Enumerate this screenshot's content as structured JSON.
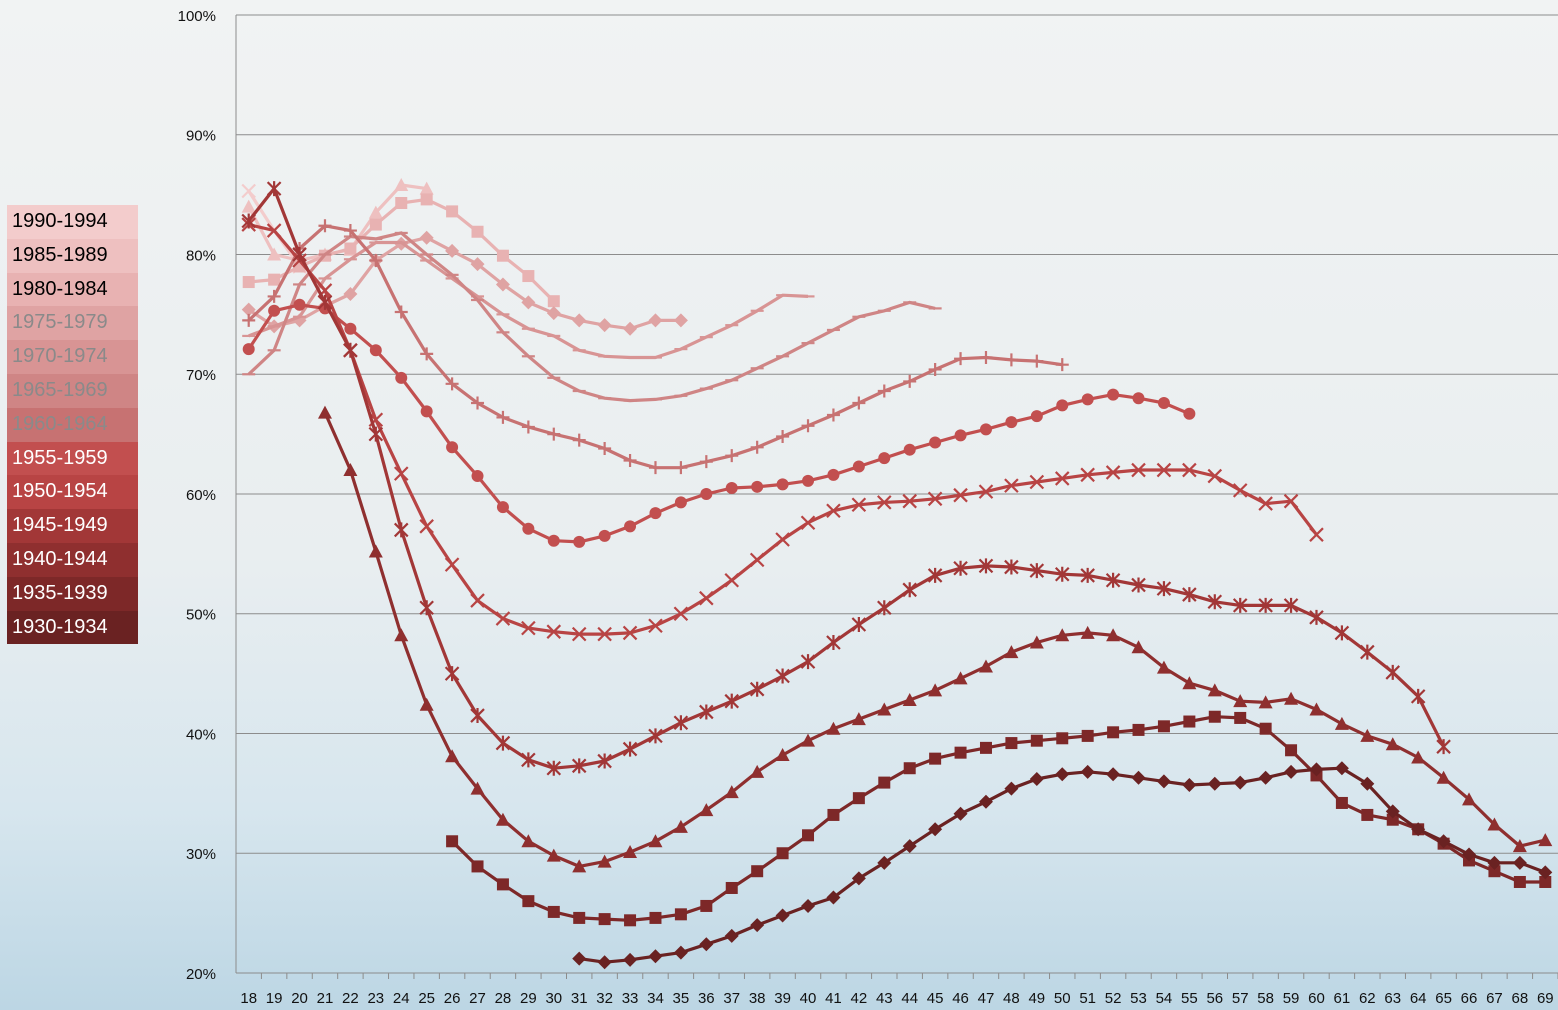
{
  "chart_data": {
    "type": "line",
    "x": [
      18,
      19,
      20,
      21,
      22,
      23,
      24,
      25,
      26,
      27,
      28,
      29,
      30,
      31,
      32,
      33,
      34,
      35,
      36,
      37,
      38,
      39,
      40,
      41,
      42,
      43,
      44,
      45,
      46,
      47,
      48,
      49,
      50,
      51,
      52,
      53,
      54,
      55,
      56,
      57,
      58,
      59,
      60,
      61,
      62,
      63,
      64,
      65,
      66,
      67,
      68,
      69
    ],
    "ylim": [
      20,
      100
    ],
    "yticks": [
      {
        "value": 20,
        "label": "20%"
      },
      {
        "value": 30,
        "label": "30%"
      },
      {
        "value": 40,
        "label": "40%"
      },
      {
        "value": 50,
        "label": "50%"
      },
      {
        "value": 60,
        "label": "60%"
      },
      {
        "value": 70,
        "label": "70%"
      },
      {
        "value": 80,
        "label": "80%"
      },
      {
        "value": 90,
        "label": "90%"
      },
      {
        "value": 100,
        "label": "100%"
      }
    ],
    "grid": true,
    "legend": "left",
    "series": [
      {
        "name": "1990-1994",
        "color": "#f3cccc",
        "marker": "x",
        "values": [
          85.3,
          82.0,
          79.0,
          null,
          null,
          null,
          null,
          null,
          null,
          null,
          null,
          null,
          null,
          null,
          null,
          null,
          null,
          null,
          null,
          null,
          null,
          null,
          null,
          null,
          null,
          null,
          null,
          null,
          null,
          null,
          null,
          null,
          null,
          null,
          null,
          null,
          null,
          null,
          null,
          null,
          null,
          null,
          null,
          null,
          null,
          null,
          null,
          null,
          null,
          null,
          null,
          null
        ]
      },
      {
        "name": "1985-1989",
        "color": "#eec0c0",
        "marker": "triangle",
        "values": [
          84.0,
          80.0,
          79.5,
          80.0,
          80.4,
          83.5,
          85.8,
          85.5,
          null,
          null,
          null,
          null,
          null,
          null,
          null,
          null,
          null,
          null,
          null,
          null,
          null,
          null,
          null,
          null,
          null,
          null,
          null,
          null,
          null,
          null,
          null,
          null,
          null,
          null,
          null,
          null,
          null,
          null,
          null,
          null,
          null,
          null,
          null,
          null,
          null,
          null,
          null,
          null,
          null,
          null,
          null,
          null
        ]
      },
      {
        "name": "1980-1984",
        "color": "#e8b2b2",
        "marker": "square",
        "values": [
          77.7,
          77.9,
          79.0,
          79.9,
          80.5,
          82.5,
          84.3,
          84.6,
          83.6,
          81.9,
          79.9,
          78.2,
          76.1,
          null,
          null,
          null,
          null,
          null,
          null,
          null,
          null,
          null,
          null,
          null,
          null,
          null,
          null,
          null,
          null,
          null,
          null,
          null,
          null,
          null,
          null,
          null,
          null,
          null,
          null,
          null,
          null,
          null,
          null,
          null,
          null,
          null,
          null,
          null,
          null,
          null,
          null,
          null
        ]
      },
      {
        "name": "1975-1979",
        "color": "#dfa3a3",
        "marker": "diamond",
        "values": [
          75.4,
          74.0,
          74.5,
          75.7,
          76.7,
          79.5,
          80.9,
          81.4,
          80.3,
          79.2,
          77.5,
          76.0,
          75.1,
          74.5,
          74.1,
          73.8,
          74.5,
          74.5,
          null,
          null,
          null,
          null,
          null,
          null,
          null,
          null,
          null,
          null,
          null,
          null,
          null,
          null,
          null,
          null,
          null,
          null,
          null,
          null,
          null,
          null,
          null,
          null,
          null,
          null,
          null,
          null,
          null,
          null,
          null,
          null,
          null,
          null
        ]
      },
      {
        "name": "1970-1974",
        "color": "#d89494",
        "marker": "dash",
        "values": [
          73.2,
          74.0,
          74.8,
          78.0,
          79.6,
          81.0,
          81.0,
          79.5,
          78.0,
          76.5,
          75.0,
          73.8,
          73.2,
          72.0,
          71.5,
          71.4,
          71.4,
          72.1,
          73.1,
          74.1,
          75.3,
          76.6,
          76.5,
          null,
          null,
          null,
          null,
          null,
          null,
          null,
          null,
          null,
          null,
          null,
          null,
          null,
          null,
          null,
          null,
          null,
          null,
          null,
          null,
          null,
          null,
          null,
          null,
          null,
          null,
          null,
          null,
          null
        ]
      },
      {
        "name": "1965-1969",
        "color": "#cf8585",
        "marker": "dash",
        "values": [
          70.0,
          72.0,
          77.5,
          80.0,
          81.5,
          81.3,
          81.8,
          80.0,
          78.3,
          76.2,
          73.5,
          71.5,
          69.7,
          68.6,
          68.0,
          67.8,
          67.9,
          68.2,
          68.8,
          69.5,
          70.5,
          71.5,
          72.6,
          73.7,
          74.8,
          75.3,
          76.0,
          75.5,
          null,
          null,
          null,
          null,
          null,
          null,
          null,
          null,
          null,
          null,
          null,
          null,
          null,
          null,
          null,
          null,
          null,
          null,
          null,
          null,
          null,
          null,
          null,
          null
        ]
      },
      {
        "name": "1960-1964",
        "color": "#c77272",
        "marker": "plus",
        "values": [
          74.5,
          76.5,
          80.5,
          82.4,
          82.0,
          79.5,
          75.2,
          71.7,
          69.2,
          67.6,
          66.4,
          65.6,
          65.0,
          64.5,
          63.8,
          62.8,
          62.2,
          62.2,
          62.7,
          63.2,
          63.9,
          64.8,
          65.7,
          66.6,
          67.6,
          68.6,
          69.4,
          70.4,
          71.3,
          71.4,
          71.2,
          71.1,
          70.8,
          null,
          null,
          null,
          null,
          null,
          null,
          null,
          null,
          null,
          null,
          null,
          null,
          null,
          null,
          null,
          null,
          null,
          null,
          null
        ]
      },
      {
        "name": "1955-1959",
        "color": "#c24f4f",
        "marker": "circle",
        "values": [
          72.1,
          75.3,
          75.8,
          75.5,
          73.8,
          72.0,
          69.7,
          66.9,
          63.9,
          61.5,
          58.9,
          57.1,
          56.1,
          56.0,
          56.5,
          57.3,
          58.4,
          59.3,
          60.0,
          60.5,
          60.6,
          60.8,
          61.1,
          61.6,
          62.3,
          63.0,
          63.7,
          64.3,
          64.9,
          65.4,
          66.0,
          66.5,
          67.4,
          67.9,
          68.3,
          68.0,
          67.6,
          66.7,
          null,
          null,
          null,
          null,
          null,
          null,
          null,
          null,
          null,
          null,
          null,
          null,
          null,
          null
        ]
      },
      {
        "name": "1950-1954",
        "color": "#b84444",
        "marker": "x",
        "values": [
          82.5,
          82.0,
          79.5,
          77.0,
          72.0,
          66.2,
          61.7,
          57.3,
          54.1,
          51.1,
          49.6,
          48.8,
          48.5,
          48.3,
          48.3,
          48.4,
          49.0,
          50.0,
          51.3,
          52.8,
          54.5,
          56.2,
          57.6,
          58.6,
          59.1,
          59.3,
          59.4,
          59.6,
          59.9,
          60.2,
          60.7,
          61.0,
          61.3,
          61.6,
          61.8,
          62.0,
          62.0,
          62.0,
          61.5,
          60.3,
          59.2,
          59.4,
          56.6,
          null,
          null,
          null,
          null,
          null,
          null,
          null,
          null,
          null
        ]
      },
      {
        "name": "1945-1949",
        "color": "#a23737",
        "marker": "star",
        "values": [
          82.8,
          85.5,
          80.0,
          76.0,
          72.0,
          65.0,
          57.0,
          50.5,
          45.0,
          41.5,
          39.2,
          37.8,
          37.1,
          37.3,
          37.7,
          38.7,
          39.8,
          40.9,
          41.8,
          42.7,
          43.7,
          44.8,
          46.0,
          47.6,
          49.1,
          50.5,
          52.0,
          53.2,
          53.8,
          54.0,
          53.9,
          53.6,
          53.3,
          53.2,
          52.8,
          52.4,
          52.1,
          51.6,
          51.0,
          50.7,
          50.7,
          50.7,
          49.7,
          48.4,
          46.8,
          45.1,
          43.1,
          38.9,
          null,
          null,
          null,
          null
        ]
      },
      {
        "name": "1940-1944",
        "color": "#8f2f2f",
        "marker": "triangle",
        "values": [
          null,
          null,
          null,
          66.8,
          62.0,
          55.2,
          48.2,
          42.4,
          38.1,
          35.4,
          32.8,
          31.0,
          29.8,
          28.9,
          29.3,
          30.1,
          31.0,
          32.2,
          33.6,
          35.1,
          36.8,
          38.2,
          39.4,
          40.4,
          41.2,
          42.0,
          42.8,
          43.6,
          44.6,
          45.6,
          46.8,
          47.6,
          48.2,
          48.4,
          48.2,
          47.2,
          45.5,
          44.2,
          43.6,
          42.7,
          42.6,
          42.9,
          42.0,
          40.8,
          39.8,
          39.1,
          38.0,
          36.3,
          34.5,
          32.4,
          30.6,
          31.1
        ]
      },
      {
        "name": "1935-1939",
        "color": "#7d2828",
        "marker": "square",
        "values": [
          null,
          null,
          null,
          null,
          null,
          null,
          null,
          null,
          31.0,
          28.9,
          27.4,
          26.0,
          25.1,
          24.6,
          24.5,
          24.4,
          24.6,
          24.9,
          25.6,
          27.1,
          28.5,
          30.0,
          31.5,
          33.2,
          34.6,
          35.9,
          37.1,
          37.9,
          38.4,
          38.8,
          39.2,
          39.4,
          39.6,
          39.8,
          40.1,
          40.3,
          40.6,
          41.0,
          41.4,
          41.3,
          40.4,
          38.6,
          36.5,
          34.2,
          33.2,
          32.8,
          32.0,
          30.8,
          29.4,
          28.5,
          27.6,
          27.6
        ]
      },
      {
        "name": "1930-1934",
        "color": "#6a2222",
        "marker": "diamond",
        "values": [
          null,
          null,
          null,
          null,
          null,
          null,
          null,
          null,
          null,
          null,
          null,
          null,
          null,
          21.2,
          20.9,
          21.1,
          21.4,
          21.7,
          22.4,
          23.1,
          24.0,
          24.8,
          25.6,
          26.3,
          27.9,
          29.2,
          30.6,
          32.0,
          33.3,
          34.3,
          35.4,
          36.2,
          36.6,
          36.8,
          36.6,
          36.3,
          36.0,
          35.7,
          35.8,
          35.9,
          36.3,
          36.8,
          37.0,
          37.1,
          35.8,
          33.5,
          32.0,
          31.0,
          29.9,
          29.2,
          29.2,
          28.4
        ]
      }
    ]
  }
}
